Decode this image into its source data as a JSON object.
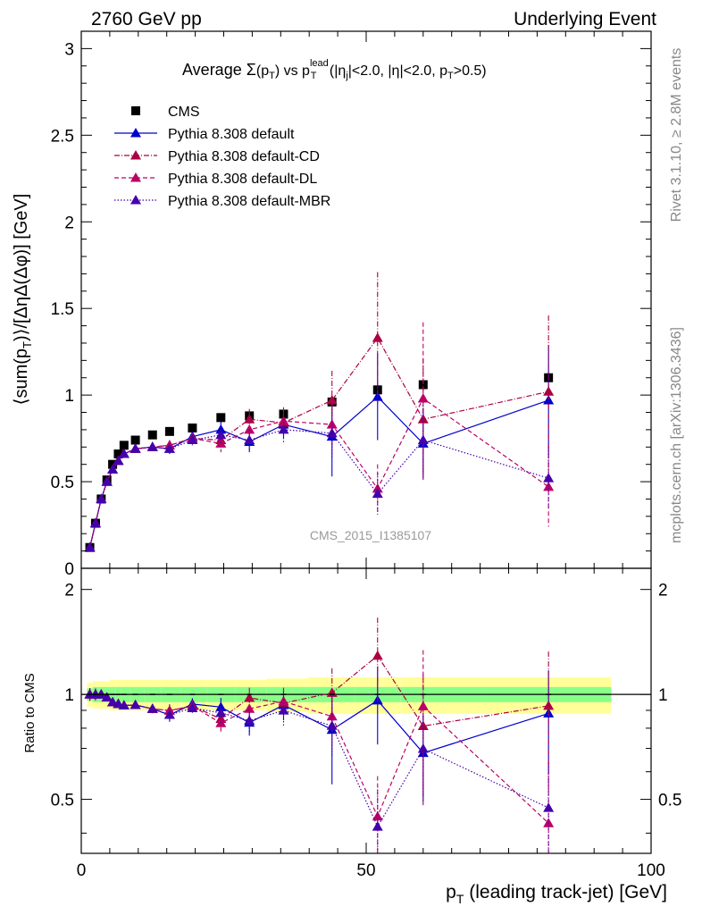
{
  "header": {
    "left": "2760 GeV pp",
    "right": "Underlying Event"
  },
  "title": {
    "prefix": "Average ",
    "sigma": "Σ",
    "p_open": "(p",
    "t_sub": "T",
    "vs": ") vs p",
    "lead_sup": "lead",
    "t_sub2": "T",
    "cond_open": " (|η",
    "j_sub": "j",
    "cond_mid": "|<2.0, |η|<2.0, p",
    "t_sub3": "T",
    "cond_close": ">0.5)"
  },
  "watermark": "CMS_2015_I1385107",
  "side_labels": {
    "rivet": "Rivet 3.1.10, ≥ 2.8M events",
    "mcplots": "mcplots.cern.ch [arXiv:1306.3436]"
  },
  "y_axis_label": {
    "part1": "⟨sum(p",
    "sub": "T",
    "part2": ")⟩/[ΔηΔ(Δφ)] [GeV]"
  },
  "ratio_axis_label": "Ratio to CMS",
  "x_axis_label": {
    "part1": "p",
    "sub": "T",
    "part2": " (leading track-jet) [GeV]"
  },
  "colors": {
    "cms": "#000000",
    "default": "#0000cc",
    "cd": "#aa0044",
    "dl": "#bb0066",
    "mbr": "#4400aa",
    "band_inner": "#88ff88",
    "band_outer": "#ffff99"
  },
  "chart_data": {
    "type": "scatter",
    "xlim": [
      0,
      100
    ],
    "ylim": [
      0,
      3.1
    ],
    "ratio_ylim": [
      0.35,
      2.3
    ],
    "x_ticks": [
      0,
      50,
      100
    ],
    "y_ticks": [
      0,
      0.5,
      1,
      1.5,
      2,
      2.5,
      3
    ],
    "ratio_ticks": [
      0.5,
      1,
      2
    ],
    "x": [
      1.5,
      2.5,
      3.5,
      4.5,
      5.5,
      6.5,
      7.5,
      9.5,
      12.5,
      15.5,
      19.5,
      24.5,
      29.5,
      35.5,
      44,
      52,
      60,
      82
    ],
    "series": [
      {
        "name": "CMS",
        "key": "cms",
        "marker": "square",
        "dash": "",
        "values": [
          0.12,
          0.26,
          0.4,
          0.51,
          0.6,
          0.66,
          0.71,
          0.74,
          0.77,
          0.79,
          0.81,
          0.87,
          0.88,
          0.89,
          0.96,
          1.03,
          1.06,
          1.1
        ],
        "errors": [
          0.005,
          0.01,
          0.01,
          0.01,
          0.01,
          0.01,
          0.01,
          0.01,
          0.01,
          0.01,
          0.01,
          0.01,
          0.01,
          0.01,
          0.02,
          0.03,
          0.03,
          0.05
        ]
      },
      {
        "name": "Pythia 8.308 default",
        "key": "default",
        "marker": "triangle",
        "dash": "",
        "values": [
          0.12,
          0.26,
          0.4,
          0.5,
          0.57,
          0.62,
          0.66,
          0.69,
          0.7,
          0.69,
          0.76,
          0.8,
          0.73,
          0.83,
          0.76,
          0.99,
          0.72,
          0.97
        ],
        "errors": [
          0.005,
          0.01,
          0.01,
          0.01,
          0.01,
          0.01,
          0.01,
          0.01,
          0.02,
          0.03,
          0.03,
          0.05,
          0.06,
          0.08,
          0.23,
          0.25,
          0.2,
          0.32
        ]
      },
      {
        "name": "Pythia 8.308 default-CD",
        "key": "cd",
        "marker": "triangle",
        "dash": "6,2,1,2",
        "values": [
          0.12,
          0.26,
          0.4,
          0.5,
          0.57,
          0.62,
          0.66,
          0.69,
          0.7,
          0.71,
          0.75,
          0.74,
          0.86,
          0.84,
          0.97,
          1.33,
          0.86,
          1.02
        ],
        "errors": [
          0.005,
          0.01,
          0.01,
          0.01,
          0.01,
          0.01,
          0.01,
          0.01,
          0.02,
          0.03,
          0.03,
          0.05,
          0.06,
          0.08,
          0.17,
          0.38,
          0.35,
          0.44
        ]
      },
      {
        "name": "Pythia 8.308 default-DL",
        "key": "dl",
        "marker": "triangle",
        "dash": "5,3",
        "values": [
          0.12,
          0.26,
          0.4,
          0.5,
          0.57,
          0.62,
          0.66,
          0.69,
          0.7,
          0.71,
          0.75,
          0.72,
          0.8,
          0.85,
          0.83,
          0.46,
          0.98,
          0.47
        ],
        "errors": [
          0.005,
          0.01,
          0.01,
          0.01,
          0.01,
          0.01,
          0.01,
          0.01,
          0.02,
          0.03,
          0.03,
          0.05,
          0.06,
          0.08,
          0.15,
          0.14,
          0.44,
          0.23
        ]
      },
      {
        "name": "Pythia 8.308 default-MBR",
        "key": "mbr",
        "marker": "triangle",
        "dash": "1.5,2",
        "values": [
          0.12,
          0.26,
          0.4,
          0.5,
          0.57,
          0.62,
          0.66,
          0.69,
          0.7,
          0.69,
          0.74,
          0.77,
          0.74,
          0.8,
          0.78,
          0.43,
          0.74,
          0.52
        ],
        "errors": [
          0.005,
          0.01,
          0.01,
          0.01,
          0.01,
          0.01,
          0.01,
          0.01,
          0.02,
          0.03,
          0.03,
          0.05,
          0.06,
          0.08,
          0.14,
          0.12,
          0.2,
          0.18
        ]
      }
    ],
    "ratio": {
      "band_inner": [
        0.04,
        0.05,
        0.05,
        0.05,
        0.05,
        0.05,
        0.05,
        0.05,
        0.05,
        0.05,
        0.05,
        0.05,
        0.05,
        0.05,
        0.05,
        0.05,
        0.05,
        0.05
      ],
      "band_outer": [
        0.08,
        0.09,
        0.09,
        0.09,
        0.1,
        0.1,
        0.1,
        0.1,
        0.1,
        0.1,
        0.1,
        0.1,
        0.1,
        0.11,
        0.12,
        0.12,
        0.12,
        0.12
      ]
    }
  }
}
